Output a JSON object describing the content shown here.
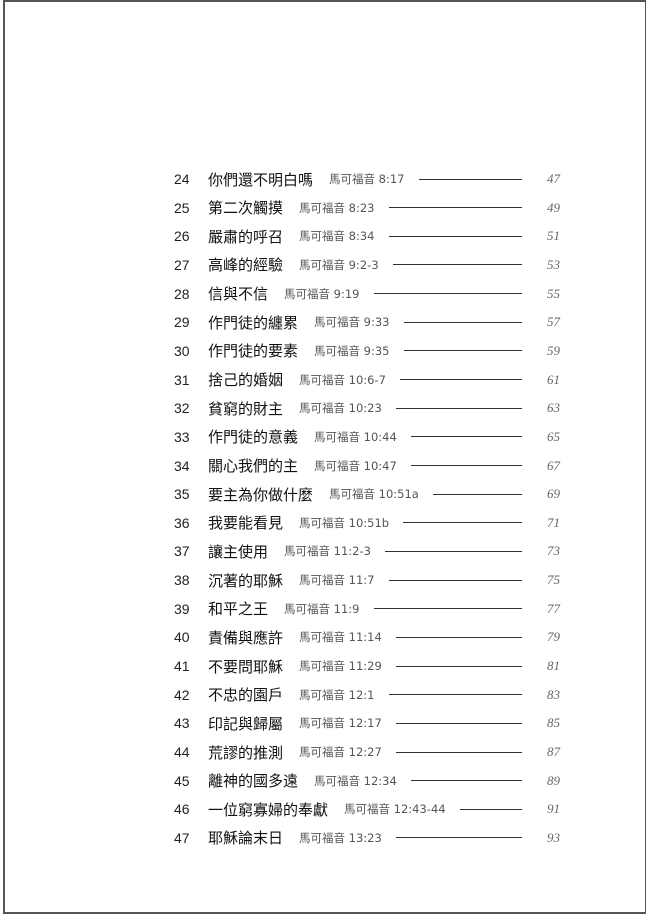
{
  "toc": [
    {
      "num": "24",
      "title": "你們還不明白嗎",
      "ref": "馬可福音 8:17",
      "page": "47"
    },
    {
      "num": "25",
      "title": "第二次觸摸",
      "ref": "馬可福音 8:23",
      "page": "49"
    },
    {
      "num": "26",
      "title": "嚴肅的呼召",
      "ref": "馬可福音 8:34",
      "page": "51"
    },
    {
      "num": "27",
      "title": "高峰的經驗",
      "ref": "馬可福音 9:2-3",
      "page": "53"
    },
    {
      "num": "28",
      "title": "信與不信",
      "ref": "馬可福音 9:19",
      "page": "55"
    },
    {
      "num": "29",
      "title": "作門徒的纏累",
      "ref": "馬可福音 9:33",
      "page": "57"
    },
    {
      "num": "30",
      "title": "作門徒的要素",
      "ref": "馬可福音 9:35",
      "page": "59"
    },
    {
      "num": "31",
      "title": "捨己的婚姻",
      "ref": "馬可福音 10:6-7",
      "page": "61"
    },
    {
      "num": "32",
      "title": "貧窮的財主",
      "ref": "馬可福音 10:23",
      "page": "63"
    },
    {
      "num": "33",
      "title": "作門徒的意義",
      "ref": "馬可福音 10:44",
      "page": "65"
    },
    {
      "num": "34",
      "title": "關心我們的主",
      "ref": "馬可福音 10:47",
      "page": "67"
    },
    {
      "num": "35",
      "title": "要主為你做什麼",
      "ref": "馬可福音 10:51a",
      "page": "69"
    },
    {
      "num": "36",
      "title": "我要能看見",
      "ref": "馬可福音 10:51b",
      "page": "71"
    },
    {
      "num": "37",
      "title": "讓主使用",
      "ref": "馬可福音 11:2-3",
      "page": "73"
    },
    {
      "num": "38",
      "title": "沉著的耶穌",
      "ref": "馬可福音 11:7",
      "page": "75"
    },
    {
      "num": "39",
      "title": "和平之王",
      "ref": "馬可福音 11:9",
      "page": "77"
    },
    {
      "num": "40",
      "title": "責備與應許",
      "ref": "馬可福音 11:14",
      "page": "79"
    },
    {
      "num": "41",
      "title": "不要問耶穌",
      "ref": "馬可福音 11:29",
      "page": "81"
    },
    {
      "num": "42",
      "title": "不忠的園戶",
      "ref": "馬可福音 12:1",
      "page": "83"
    },
    {
      "num": "43",
      "title": "印記與歸屬",
      "ref": "馬可福音 12:17",
      "page": "85"
    },
    {
      "num": "44",
      "title": "荒謬的推測",
      "ref": "馬可福音 12:27",
      "page": "87"
    },
    {
      "num": "45",
      "title": "離神的國多遠",
      "ref": "馬可福音 12:34",
      "page": "89"
    },
    {
      "num": "46",
      "title": "一位窮寡婦的奉獻",
      "ref": "馬可福音 12:43-44",
      "page": "91"
    },
    {
      "num": "47",
      "title": "耶穌論末日",
      "ref": "馬可福音 13:23",
      "page": "93"
    }
  ]
}
